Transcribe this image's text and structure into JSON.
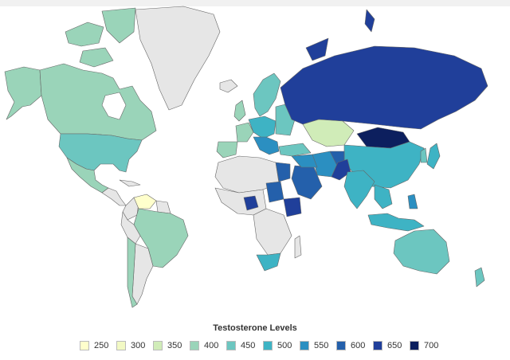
{
  "legend": {
    "title": "Testosterone Levels",
    "items": [
      {
        "label": "250",
        "color": "#ffffcc"
      },
      {
        "label": "300",
        "color": "#f2f9c4"
      },
      {
        "label": "350",
        "color": "#d0ecb8"
      },
      {
        "label": "400",
        "color": "#9ad4b9"
      },
      {
        "label": "450",
        "color": "#6cc6c0"
      },
      {
        "label": "500",
        "color": "#3eb3c4"
      },
      {
        "label": "550",
        "color": "#2b8fc1"
      },
      {
        "label": "600",
        "color": "#2460ab"
      },
      {
        "label": "650",
        "color": "#203f9a"
      },
      {
        "label": "700",
        "color": "#0c1f5e"
      }
    ]
  },
  "colors": {
    "no_data": "#e6e6e6",
    "border": "#666666",
    "background": "#ffffff"
  }
}
